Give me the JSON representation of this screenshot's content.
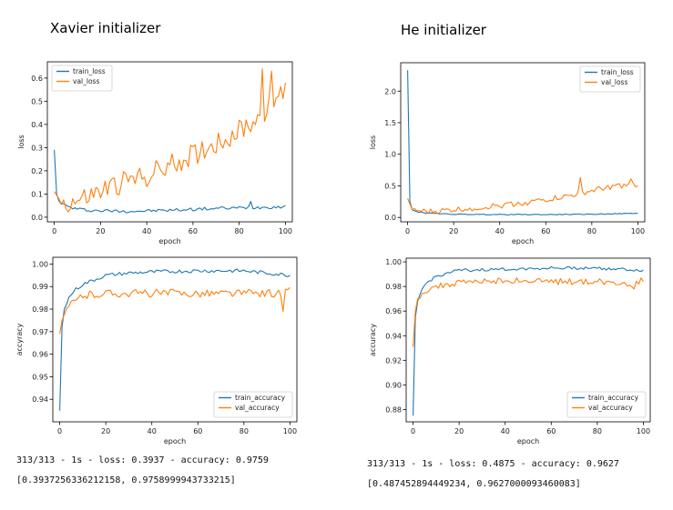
{
  "headings": {
    "left": "Xavier initializer",
    "right": "He initializer"
  },
  "outputs": {
    "left_line1": "313/313 - 1s - loss: 0.3937 - accuracy: 0.9759",
    "left_line2": "[0.3937256336212158, 0.9758999943733215]",
    "right_line1": "313/313 - 1s - loss: 0.4875 - accuracy: 0.9627",
    "right_line2": "[0.487452894449234, 0.9627000093460083]"
  },
  "colors": {
    "train": "#1f77b4",
    "val": "#ff7f0e"
  },
  "chart_data": [
    {
      "type": "line",
      "id": "xavier-loss",
      "xlabel": "epoch",
      "ylabel": "loss",
      "xlim": [
        -3,
        103
      ],
      "ylim": [
        -0.02,
        0.67
      ],
      "xticks": [
        0,
        20,
        40,
        60,
        80,
        100
      ],
      "yticks": [
        0.0,
        0.1,
        0.2,
        0.3,
        0.4,
        0.5,
        0.6
      ],
      "ytick_labels": [
        "0.0",
        "0.1",
        "0.2",
        "0.3",
        "0.4",
        "0.5",
        "0.6"
      ],
      "legend_position": "top-left",
      "series": [
        {
          "name": "train_loss",
          "color": "#1f77b4",
          "keypoints": [
            [
              0,
              0.29
            ],
            [
              1,
              0.1
            ],
            [
              2,
              0.07
            ],
            [
              4,
              0.055
            ],
            [
              6,
              0.045
            ],
            [
              10,
              0.035
            ],
            [
              15,
              0.03
            ],
            [
              20,
              0.028
            ],
            [
              30,
              0.026
            ],
            [
              40,
              0.027
            ],
            [
              50,
              0.03
            ],
            [
              60,
              0.034
            ],
            [
              70,
              0.038
            ],
            [
              80,
              0.04
            ],
            [
              90,
              0.043
            ],
            [
              100,
              0.045
            ]
          ],
          "noise": 0.007,
          "spikes": [
            [
              85,
              0.068
            ]
          ]
        },
        {
          "name": "val_loss",
          "color": "#ff7f0e",
          "keypoints": [
            [
              0,
              0.11
            ],
            [
              2,
              0.08
            ],
            [
              4,
              0.06
            ],
            [
              8,
              0.065
            ],
            [
              12,
              0.075
            ],
            [
              20,
              0.11
            ],
            [
              30,
              0.15
            ],
            [
              40,
              0.18
            ],
            [
              50,
              0.22
            ],
            [
              60,
              0.27
            ],
            [
              70,
              0.32
            ],
            [
              80,
              0.37
            ],
            [
              90,
              0.44
            ],
            [
              100,
              0.55
            ]
          ],
          "noise": 0.05,
          "spikes": [
            [
              90,
              0.64
            ],
            [
              94,
              0.63
            ],
            [
              100,
              0.58
            ]
          ]
        }
      ]
    },
    {
      "type": "line",
      "id": "xavier-accuracy",
      "xlabel": "epoch",
      "ylabel": "accyracy",
      "xlim": [
        -3,
        103
      ],
      "ylim": [
        0.93,
        1.003
      ],
      "xticks": [
        0,
        20,
        40,
        60,
        80,
        100
      ],
      "yticks": [
        0.94,
        0.95,
        0.96,
        0.97,
        0.98,
        0.99,
        1.0
      ],
      "ytick_labels": [
        "0.94",
        "0.95",
        "0.96",
        "0.97",
        "0.98",
        "0.99",
        "1.00"
      ],
      "legend_position": "bottom-right",
      "series": [
        {
          "name": "train_accuracy",
          "color": "#1f77b4",
          "keypoints": [
            [
              0,
              0.935
            ],
            [
              1,
              0.972
            ],
            [
              2,
              0.98
            ],
            [
              4,
              0.985
            ],
            [
              6,
              0.988
            ],
            [
              10,
              0.991
            ],
            [
              15,
              0.993
            ],
            [
              20,
              0.995
            ],
            [
              30,
              0.996
            ],
            [
              40,
              0.9965
            ],
            [
              60,
              0.997
            ],
            [
              80,
              0.997
            ],
            [
              100,
              0.995
            ]
          ],
          "noise": 0.0008,
          "spikes": []
        },
        {
          "name": "val_accuracy",
          "color": "#ff7f0e",
          "keypoints": [
            [
              0,
              0.969
            ],
            [
              1,
              0.975
            ],
            [
              3,
              0.98
            ],
            [
              6,
              0.983
            ],
            [
              10,
              0.986
            ],
            [
              20,
              0.987
            ],
            [
              40,
              0.987
            ],
            [
              60,
              0.987
            ],
            [
              80,
              0.987
            ],
            [
              97,
              0.987
            ],
            [
              100,
              0.988
            ]
          ],
          "noise": 0.0018,
          "spikes": [
            [
              97,
              0.979
            ]
          ]
        }
      ]
    },
    {
      "type": "line",
      "id": "he-loss",
      "xlabel": "epoch",
      "ylabel": "loss",
      "xlim": [
        -3,
        103
      ],
      "ylim": [
        -0.07,
        2.45
      ],
      "xticks": [
        0,
        20,
        40,
        60,
        80,
        100
      ],
      "yticks": [
        0.0,
        0.5,
        1.0,
        1.5,
        2.0
      ],
      "ytick_labels": [
        "0.0",
        "0.5",
        "1.0",
        "1.5",
        "2.0"
      ],
      "legend_position": "top-right",
      "series": [
        {
          "name": "train_loss",
          "color": "#1f77b4",
          "keypoints": [
            [
              0,
              2.33
            ],
            [
              1,
              0.25
            ],
            [
              2,
              0.12
            ],
            [
              4,
              0.09
            ],
            [
              8,
              0.07
            ],
            [
              15,
              0.055
            ],
            [
              20,
              0.05
            ],
            [
              40,
              0.045
            ],
            [
              60,
              0.045
            ],
            [
              80,
              0.05
            ],
            [
              100,
              0.065
            ]
          ],
          "noise": 0.006,
          "spikes": []
        },
        {
          "name": "val_loss",
          "color": "#ff7f0e",
          "keypoints": [
            [
              0,
              0.3
            ],
            [
              2,
              0.12
            ],
            [
              5,
              0.1
            ],
            [
              10,
              0.09
            ],
            [
              20,
              0.12
            ],
            [
              30,
              0.15
            ],
            [
              40,
              0.19
            ],
            [
              50,
              0.23
            ],
            [
              60,
              0.28
            ],
            [
              70,
              0.34
            ],
            [
              80,
              0.42
            ],
            [
              90,
              0.5
            ],
            [
              100,
              0.5
            ]
          ],
          "noise": 0.045,
          "spikes": [
            [
              75,
              0.63
            ],
            [
              97,
              0.61
            ]
          ]
        }
      ]
    },
    {
      "type": "line",
      "id": "he-accuracy",
      "xlabel": "epoch",
      "ylabel": "accuracy",
      "xlim": [
        -3,
        103
      ],
      "ylim": [
        0.87,
        1.003
      ],
      "xticks": [
        0,
        20,
        40,
        60,
        80,
        100
      ],
      "yticks": [
        0.88,
        0.9,
        0.92,
        0.94,
        0.96,
        0.98,
        1.0
      ],
      "ytick_labels": [
        "0.88",
        "0.90",
        "0.92",
        "0.94",
        "0.96",
        "0.98",
        "1.00"
      ],
      "legend_position": "bottom-right",
      "series": [
        {
          "name": "train_accuracy",
          "color": "#1f77b4",
          "keypoints": [
            [
              0,
              0.875
            ],
            [
              1,
              0.955
            ],
            [
              2,
              0.968
            ],
            [
              4,
              0.978
            ],
            [
              6,
              0.983
            ],
            [
              10,
              0.988
            ],
            [
              15,
              0.991
            ],
            [
              20,
              0.993
            ],
            [
              40,
              0.994
            ],
            [
              60,
              0.995
            ],
            [
              80,
              0.995
            ],
            [
              100,
              0.993
            ]
          ],
          "noise": 0.0012,
          "spikes": []
        },
        {
          "name": "val_accuracy",
          "color": "#ff7f0e",
          "keypoints": [
            [
              0,
              0.931
            ],
            [
              1,
              0.96
            ],
            [
              2,
              0.97
            ],
            [
              4,
              0.975
            ],
            [
              8,
              0.979
            ],
            [
              20,
              0.983
            ],
            [
              40,
              0.985
            ],
            [
              60,
              0.984
            ],
            [
              80,
              0.984
            ],
            [
              95,
              0.982
            ],
            [
              100,
              0.986
            ]
          ],
          "noise": 0.0025,
          "spikes": [
            [
              96,
              0.978
            ]
          ]
        }
      ]
    }
  ]
}
